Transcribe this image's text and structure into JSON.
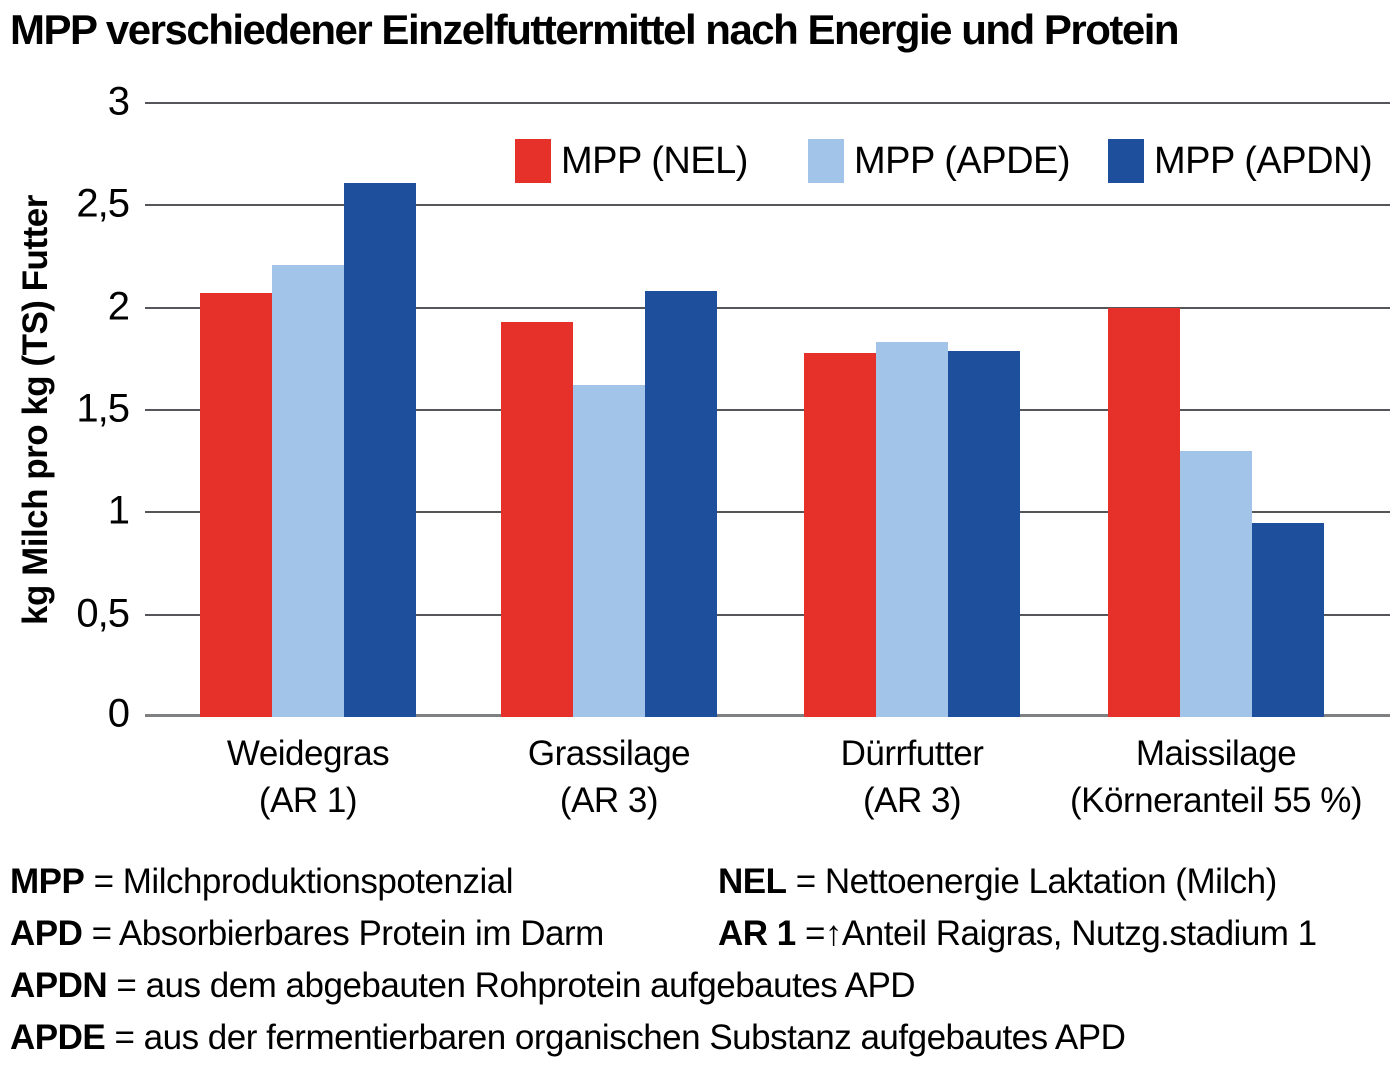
{
  "title": "MPP verschiedener Einzelfuttermittel nach Energie und Protein",
  "chart_data": {
    "type": "bar",
    "title": "MPP verschiedener Einzelfuttermittel nach Energie und Protein",
    "xlabel": "",
    "ylabel": "kg Milch pro kg (TS) Futter",
    "ylim": [
      0,
      3
    ],
    "ytick_values": [
      3,
      2.5,
      2,
      1.5,
      1,
      0.5,
      0
    ],
    "ytick_labels": [
      "3",
      "2,5",
      "2",
      "1,5",
      "1",
      "0,5",
      "0"
    ],
    "grid": true,
    "legend_position": "top-inside",
    "categories": [
      {
        "line1": "Weidegras",
        "line2": "(AR 1)"
      },
      {
        "line1": "Grassilage",
        "line2": "(AR 3)"
      },
      {
        "line1": "Dürrfutter",
        "line2": "(AR 3)"
      },
      {
        "line1": "Maissilage",
        "line2": "(Körneranteil 55 %)"
      }
    ],
    "series": [
      {
        "name": "MPP (NEL)",
        "color": "#e6312a",
        "values": [
          2.07,
          1.93,
          1.78,
          2.0
        ]
      },
      {
        "name": "MPP (APDE)",
        "color": "#a2c4e8",
        "values": [
          2.21,
          1.62,
          1.83,
          1.3
        ]
      },
      {
        "name": "MPP (APDN)",
        "color": "#1d4f9c",
        "values": [
          2.61,
          2.08,
          1.79,
          0.95
        ]
      }
    ],
    "group_centers_frac": [
      0.131,
      0.373,
      0.616,
      0.86
    ]
  },
  "colors": {
    "series_red": "#e6312a",
    "series_light_blue": "#a2c4e8",
    "series_dark_blue": "#1d4f9c",
    "gridline": "#55565a",
    "baseline": "#7f8082"
  },
  "footer": {
    "rows": [
      {
        "left": {
          "term": "MPP",
          "def": "= Milchproduktionspotenzial"
        },
        "right": {
          "term": "NEL",
          "def": "= Nettoenergie Laktation (Milch)"
        }
      },
      {
        "left": {
          "term": "APD",
          "def": "= Absorbierbares Protein im Darm"
        },
        "right": {
          "term": "AR 1",
          "def": "=↑Anteil Raigras, Nutzg.stadium 1"
        }
      },
      {
        "left": {
          "term": "APDN",
          "def": "= aus dem abgebauten Rohprotein aufgebautes APD"
        }
      },
      {
        "left": {
          "term": "APDE",
          "def": "= aus der fermentierbaren organischen Substanz aufgebautes APD"
        }
      }
    ]
  }
}
